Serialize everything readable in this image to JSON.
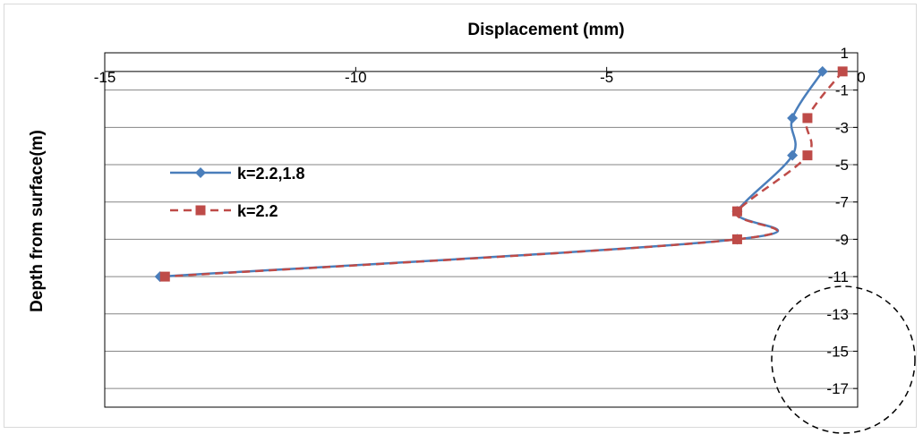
{
  "chart_data": {
    "type": "line",
    "xlabel": "Displacement (mm)",
    "ylabel": "Depth from surface(m)",
    "xlim": [
      -15,
      0
    ],
    "ylim": [
      -18,
      1
    ],
    "x_ticks": [
      "-15",
      "-10",
      "-5",
      "0"
    ],
    "y_ticks": [
      "1",
      "-1",
      "-3",
      "-5",
      "-7",
      "-9",
      "-11",
      "-13",
      "-15",
      "-17"
    ],
    "x_tick_values": [
      -15,
      -10,
      -5,
      0
    ],
    "y_tick_values": [
      1,
      -1,
      -3,
      -5,
      -7,
      -9,
      -11,
      -13,
      -15,
      -17
    ],
    "gridlines": "horizontal",
    "legend_position": "left",
    "series": [
      {
        "name": "k=2.2,1.8",
        "color": "#4a7ebb",
        "line_style": "solid",
        "marker": "diamond",
        "points": [
          {
            "x": -0.7,
            "y": 0
          },
          {
            "x": -1.3,
            "y": -2.5
          },
          {
            "x": -1.3,
            "y": -4.5
          },
          {
            "x": -2.4,
            "y": -7.5
          },
          {
            "x": -2.4,
            "y": -9
          },
          {
            "x": -13.9,
            "y": -11
          }
        ]
      },
      {
        "name": "k=2.2",
        "color": "#be4b48",
        "line_style": "dashed",
        "marker": "square",
        "points": [
          {
            "x": -0.3,
            "y": 0
          },
          {
            "x": -1.0,
            "y": -2.5
          },
          {
            "x": -1.0,
            "y": -4.5
          },
          {
            "x": -2.4,
            "y": -7.5
          },
          {
            "x": -2.4,
            "y": -9
          },
          {
            "x": -13.8,
            "y": -11
          }
        ]
      }
    ],
    "annotation": {
      "shape": "dashed-circle",
      "color": "#000000"
    }
  }
}
